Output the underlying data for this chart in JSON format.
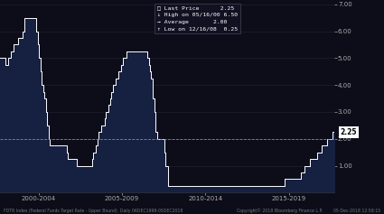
{
  "background_color": "#0d0d1a",
  "fill_color": "#162040",
  "line_color": "#ffffff",
  "avg_color": "#888888",
  "ylabel_color": "#aaaaaa",
  "xlabel_color": "#aaaaaa",
  "ylim": [
    0.0,
    7.0
  ],
  "yticks": [
    1.0,
    2.0,
    3.0,
    4.0,
    5.0,
    6.0,
    7.0
  ],
  "last_price": 2.25,
  "high_date": "05/16/00",
  "high_val": 6.5,
  "avg_val": 2.0,
  "low_date": "12/16/08",
  "low_val": 0.25,
  "footer_left": "FDTR Index (Federal Funds Target Rate - Upper Bound)  Daily 06DEC1998-05DEC2018",
  "footer_right": "Copyright© 2018 Bloomberg Finance L.P.        05-Dec-2018 12:58:15",
  "x_tick_labels": [
    "2000-2004",
    "2005-2009",
    "2010-2014",
    "2015-2019"
  ],
  "x_tick_positions": [
    0.115,
    0.365,
    0.615,
    0.865
  ],
  "data": [
    [
      1998.92,
      5.0
    ],
    [
      1999.0,
      5.0
    ],
    [
      1999.25,
      4.75
    ],
    [
      1999.42,
      5.0
    ],
    [
      1999.58,
      5.25
    ],
    [
      1999.75,
      5.5
    ],
    [
      1999.92,
      5.5
    ],
    [
      2000.0,
      5.75
    ],
    [
      2000.17,
      5.75
    ],
    [
      2000.25,
      6.0
    ],
    [
      2000.33,
      6.0
    ],
    [
      2000.38,
      6.5
    ],
    [
      2000.5,
      6.5
    ],
    [
      2000.75,
      6.5
    ],
    [
      2001.0,
      6.5
    ],
    [
      2001.08,
      6.0
    ],
    [
      2001.17,
      5.5
    ],
    [
      2001.25,
      5.0
    ],
    [
      2001.33,
      4.5
    ],
    [
      2001.42,
      4.0
    ],
    [
      2001.5,
      3.75
    ],
    [
      2001.58,
      3.5
    ],
    [
      2001.67,
      3.0
    ],
    [
      2001.75,
      2.5
    ],
    [
      2001.83,
      2.0
    ],
    [
      2001.92,
      1.75
    ],
    [
      2002.0,
      1.75
    ],
    [
      2002.5,
      1.75
    ],
    [
      2002.83,
      1.75
    ],
    [
      2002.92,
      1.5
    ],
    [
      2003.0,
      1.25
    ],
    [
      2003.25,
      1.25
    ],
    [
      2003.5,
      1.0
    ],
    [
      2004.0,
      1.0
    ],
    [
      2004.25,
      1.0
    ],
    [
      2004.42,
      1.25
    ],
    [
      2004.5,
      1.5
    ],
    [
      2004.67,
      1.75
    ],
    [
      2004.75,
      2.0
    ],
    [
      2004.83,
      2.25
    ],
    [
      2004.92,
      2.25
    ],
    [
      2005.0,
      2.5
    ],
    [
      2005.08,
      2.5
    ],
    [
      2005.17,
      2.75
    ],
    [
      2005.25,
      3.0
    ],
    [
      2005.42,
      3.25
    ],
    [
      2005.5,
      3.5
    ],
    [
      2005.58,
      3.75
    ],
    [
      2005.67,
      4.0
    ],
    [
      2005.75,
      4.0
    ],
    [
      2005.83,
      4.25
    ],
    [
      2005.92,
      4.25
    ],
    [
      2006.0,
      4.5
    ],
    [
      2006.08,
      4.5
    ],
    [
      2006.17,
      4.75
    ],
    [
      2006.25,
      5.0
    ],
    [
      2006.33,
      5.0
    ],
    [
      2006.5,
      5.25
    ],
    [
      2007.0,
      5.25
    ],
    [
      2007.5,
      5.25
    ],
    [
      2007.75,
      5.0
    ],
    [
      2007.83,
      4.75
    ],
    [
      2007.92,
      4.5
    ],
    [
      2007.96,
      4.25
    ],
    [
      2008.0,
      4.25
    ],
    [
      2008.08,
      3.5
    ],
    [
      2008.17,
      3.0
    ],
    [
      2008.25,
      2.25
    ],
    [
      2008.33,
      2.0
    ],
    [
      2008.42,
      2.0
    ],
    [
      2008.67,
      2.0
    ],
    [
      2008.75,
      1.5
    ],
    [
      2008.83,
      1.0
    ],
    [
      2008.96,
      0.25
    ],
    [
      2009.0,
      0.25
    ],
    [
      2010.0,
      0.25
    ],
    [
      2011.0,
      0.25
    ],
    [
      2012.0,
      0.25
    ],
    [
      2013.0,
      0.25
    ],
    [
      2014.0,
      0.25
    ],
    [
      2015.0,
      0.25
    ],
    [
      2015.92,
      0.25
    ],
    [
      2015.96,
      0.5
    ],
    [
      2016.0,
      0.5
    ],
    [
      2016.25,
      0.5
    ],
    [
      2016.5,
      0.5
    ],
    [
      2016.92,
      0.75
    ],
    [
      2017.0,
      0.75
    ],
    [
      2017.17,
      1.0
    ],
    [
      2017.25,
      1.0
    ],
    [
      2017.5,
      1.25
    ],
    [
      2017.75,
      1.25
    ],
    [
      2017.92,
      1.5
    ],
    [
      2018.0,
      1.5
    ],
    [
      2018.17,
      1.75
    ],
    [
      2018.25,
      1.75
    ],
    [
      2018.5,
      2.0
    ],
    [
      2018.75,
      2.0
    ],
    [
      2018.83,
      2.25
    ],
    [
      2018.92,
      2.25
    ]
  ]
}
